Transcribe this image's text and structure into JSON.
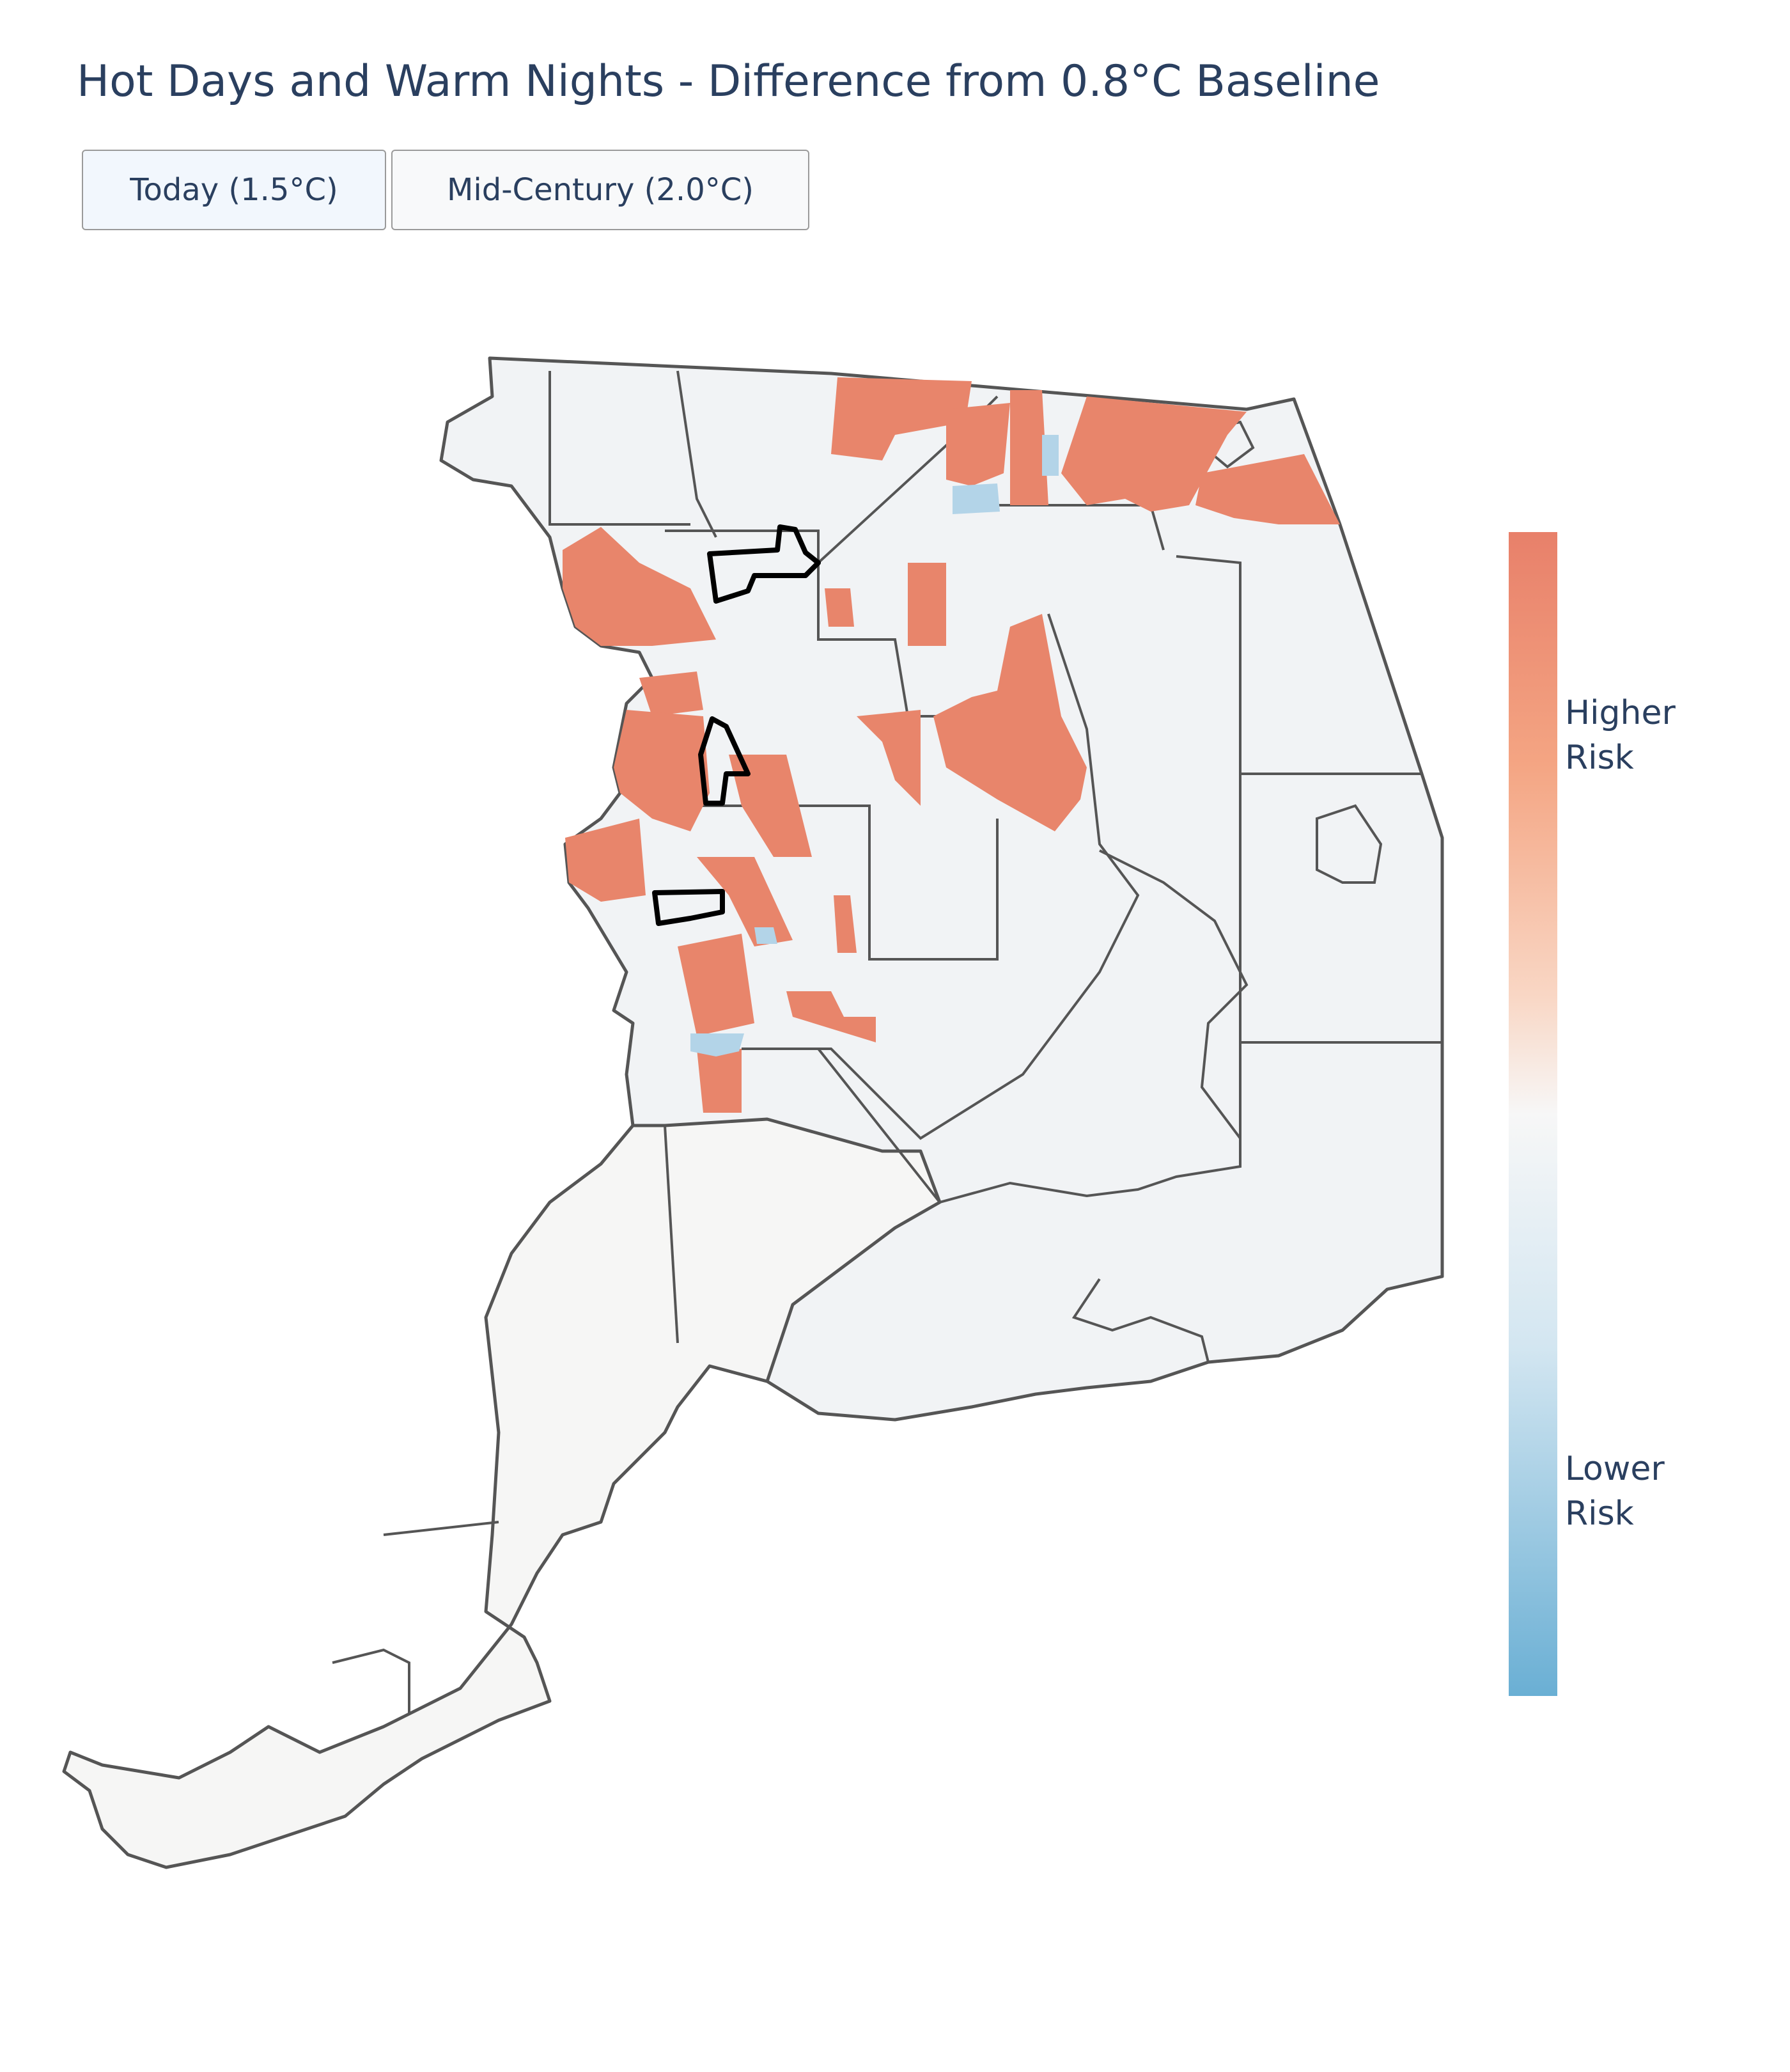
{
  "title": "Hot Days and Warm Nights - Difference from 0.8°C Baseline",
  "buttons": [
    "Today (1.5°C)",
    "Mid-Century (2.0°C)"
  ],
  "colorbar": {
    "high_label": "Higher Risk",
    "low_label": "Lower Risk"
  }
}
